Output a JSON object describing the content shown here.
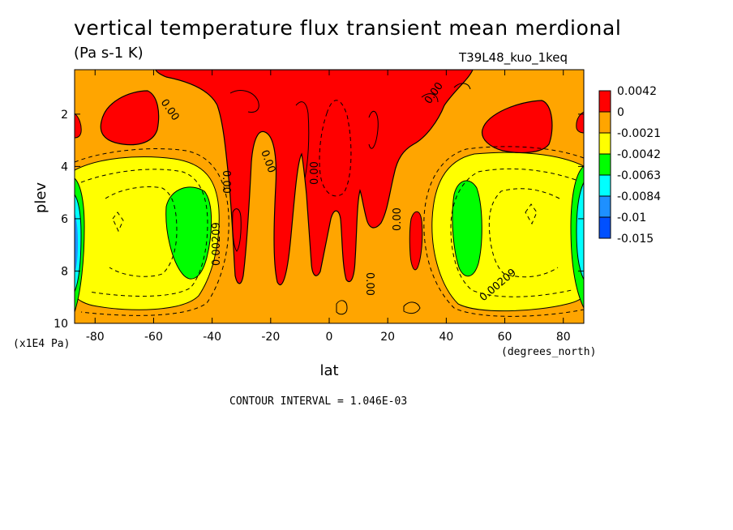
{
  "page": {
    "title": "vertical temperature flux transient mean merdional",
    "units": "(Pa s-1 K)",
    "dataset": "T39L48_kuo_1keq",
    "contour_interval": "CONTOUR INTERVAL = 1.046E-03"
  },
  "chart_data": {
    "type": "heatmap",
    "title": "vertical temperature flux transient mean merdional",
    "subtitle": "(Pa s-1 K)",
    "xlabel": "lat",
    "x_units": "(degrees_north)",
    "ylabel": "plev",
    "y_units": "(x1E4 Pa)",
    "xlim": [
      -87,
      87
    ],
    "ylim": [
      10,
      0.3
    ],
    "x_ticks": [
      -80,
      -60,
      -40,
      -20,
      0,
      20,
      40,
      60,
      80
    ],
    "x_tick_labels": [
      "-80",
      "-60",
      "-40",
      "-20",
      "0",
      "20",
      "40",
      "60",
      "80"
    ],
    "y_ticks": [
      2,
      4,
      6,
      8,
      10
    ],
    "y_tick_labels": [
      "2",
      "4",
      "6",
      "8",
      "10"
    ],
    "colorbar": {
      "labels": [
        "0.0042",
        "0",
        "-0.0021",
        "-0.0042",
        "-0.0063",
        "-0.0084",
        "-0.01",
        "-0.015"
      ],
      "colors": [
        "#ff0000",
        "#ffa500",
        "#ffff00",
        "#00ff00",
        "#00ffff",
        "#1e90ff",
        "#0050ff"
      ]
    },
    "contour_labels": [
      "0.00",
      "0.00",
      "0.00",
      "0.00",
      "0.00",
      "0.00",
      "0.00",
      "0.00209",
      "0.00209"
    ],
    "contour_interval": 0.001046
  }
}
